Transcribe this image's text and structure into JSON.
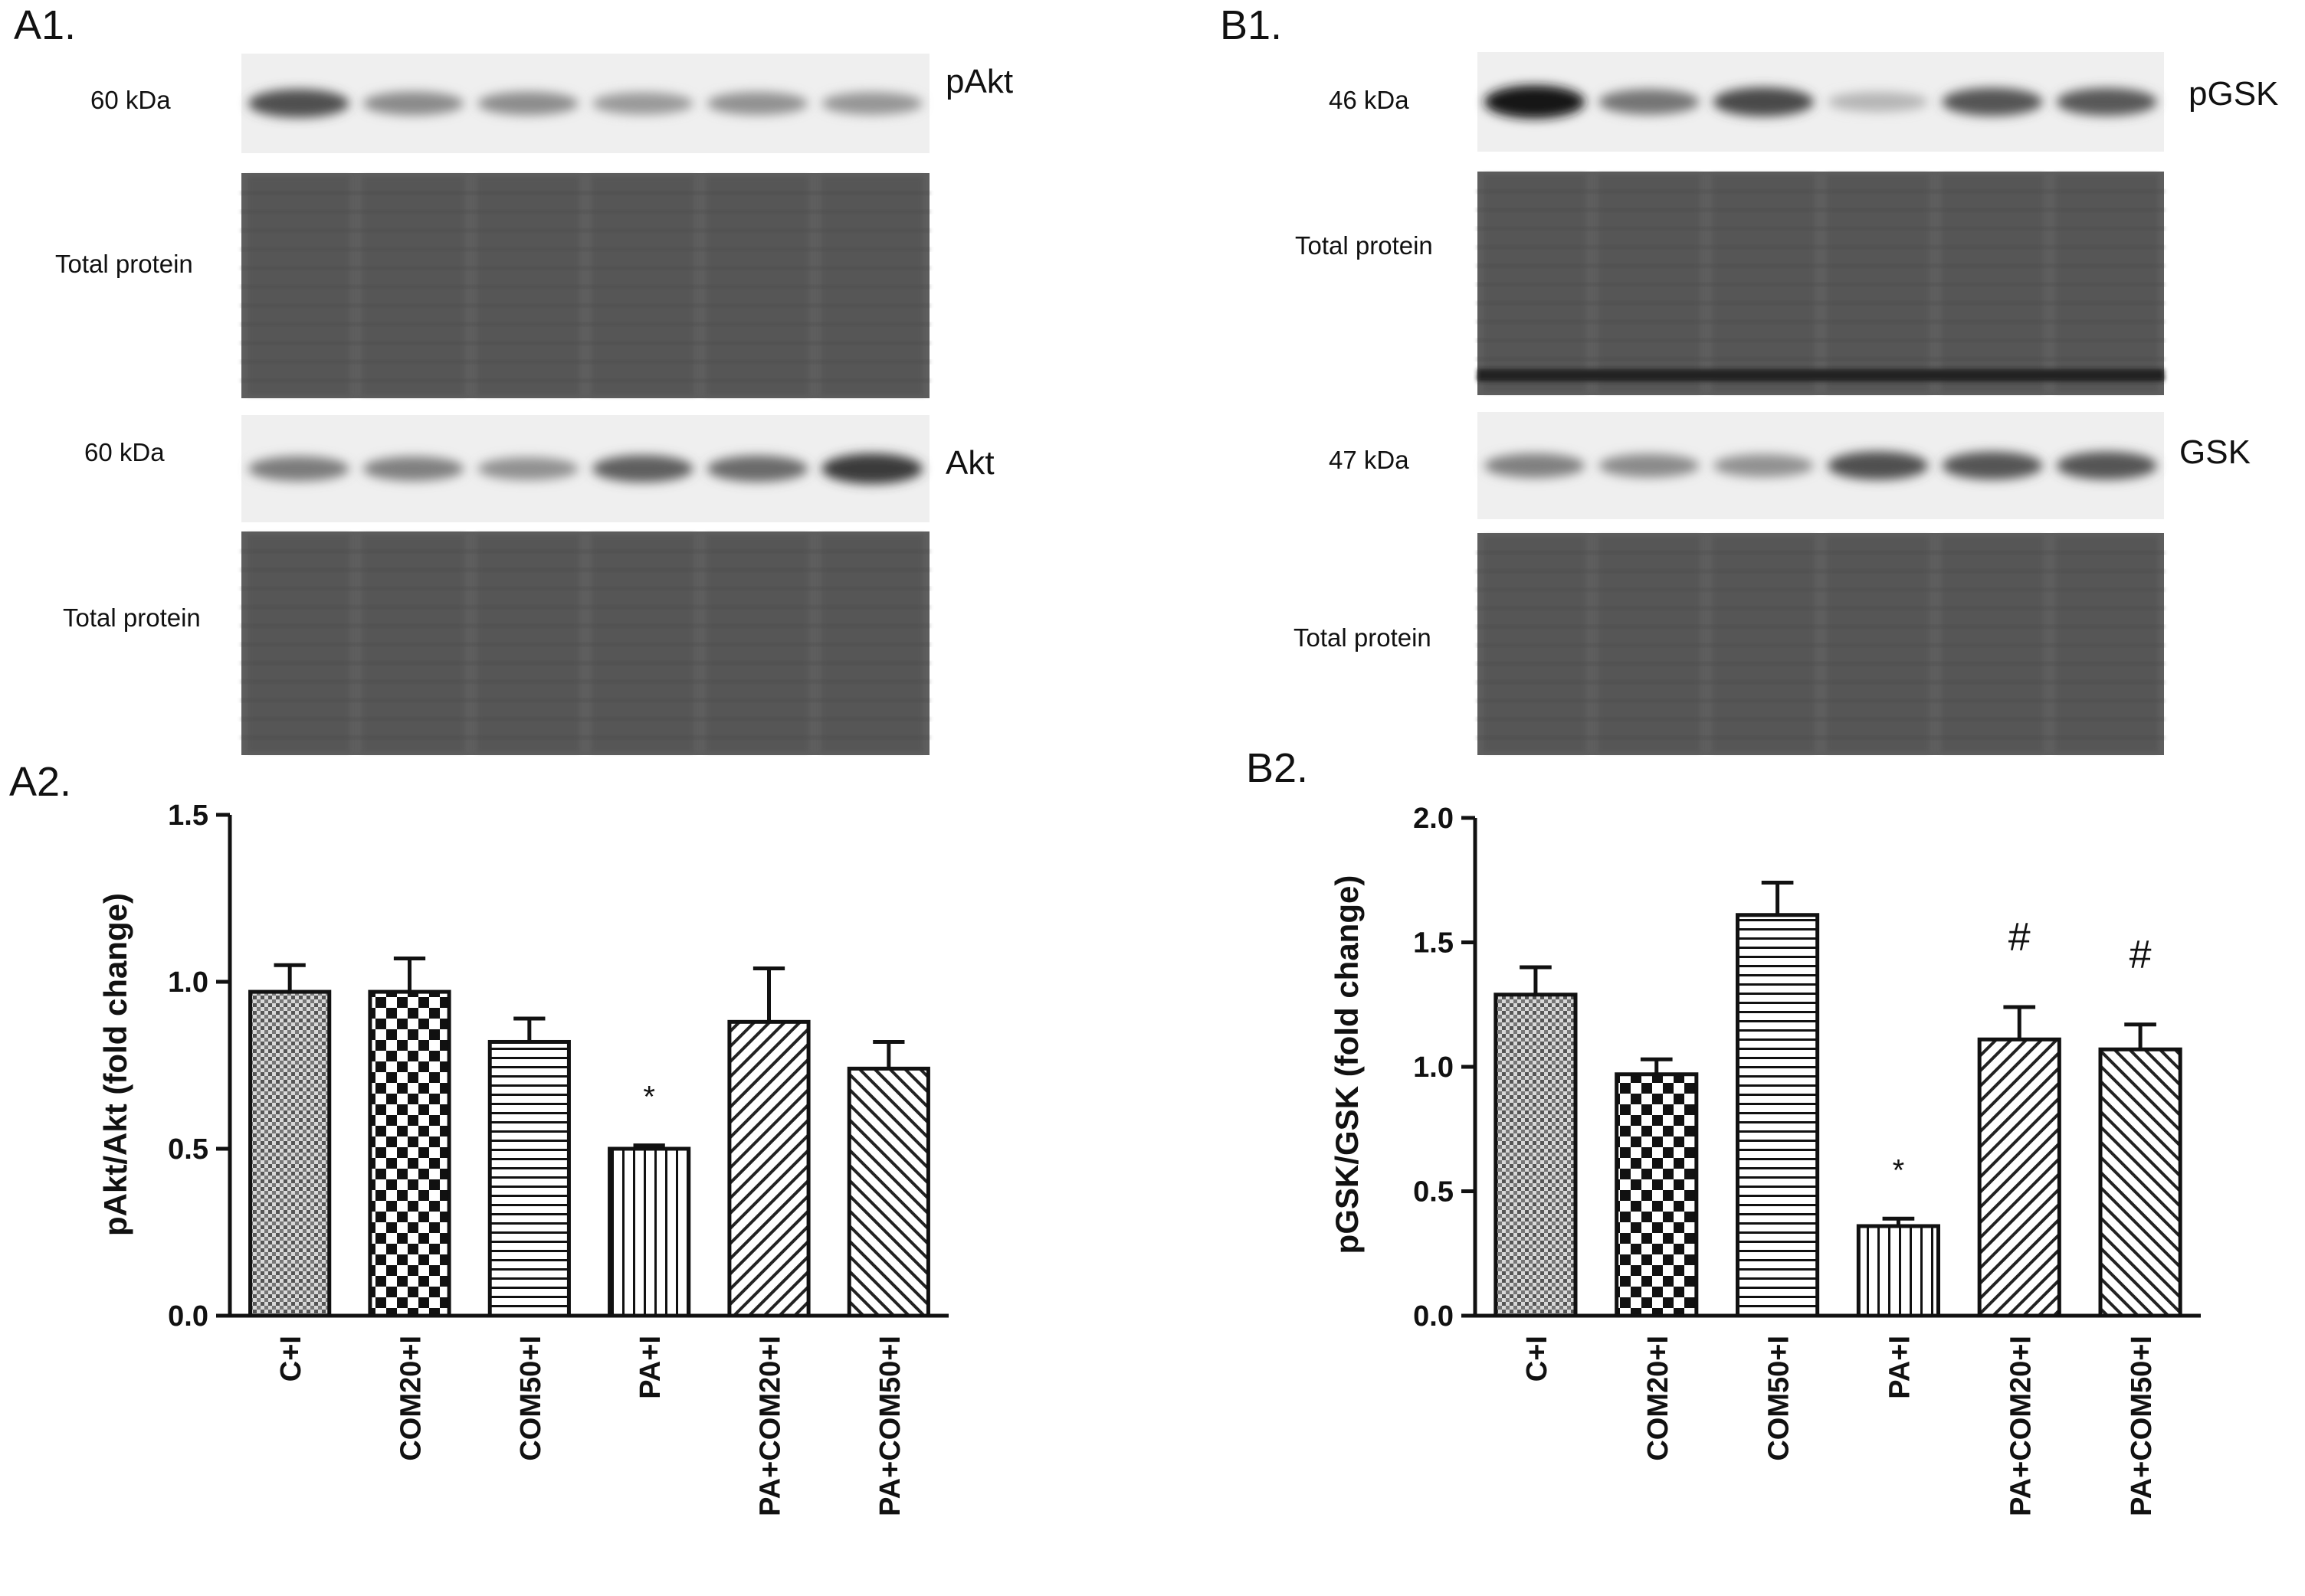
{
  "panels": {
    "a1": {
      "letter": "A1.",
      "rows": [
        {
          "kda": "60 kDa",
          "name": "pAkt",
          "type": "band",
          "intensity": [
            0.72,
            0.45,
            0.44,
            0.38,
            0.42,
            0.4
          ]
        },
        {
          "left": "Total protein",
          "type": "total"
        },
        {
          "kda": "60 kDa",
          "name": "Akt",
          "type": "band",
          "intensity": [
            0.52,
            0.5,
            0.42,
            0.65,
            0.6,
            0.82
          ]
        },
        {
          "left": "Total protein",
          "type": "total"
        }
      ]
    },
    "b1": {
      "letter": "B1.",
      "rows": [
        {
          "kda": "46 kDa",
          "name": "pGSK",
          "type": "band",
          "intensity": [
            0.98,
            0.55,
            0.75,
            0.25,
            0.7,
            0.68
          ]
        },
        {
          "left": "Total protein",
          "type": "total"
        },
        {
          "kda": "47 kDa",
          "name": "GSK",
          "type": "band",
          "intensity": [
            0.5,
            0.45,
            0.42,
            0.72,
            0.7,
            0.7
          ]
        },
        {
          "left": "Total protein",
          "type": "total"
        }
      ]
    },
    "a2": {
      "letter": "A2."
    },
    "b2": {
      "letter": "B2."
    }
  },
  "chart_data": [
    {
      "type": "bar",
      "categories": [
        "C+I",
        "COM20+I",
        "COM50+I",
        "PA+I",
        "PA+COM20+I",
        "PA+COM50+I"
      ],
      "values": [
        0.97,
        0.97,
        0.82,
        0.5,
        0.88,
        0.74
      ],
      "errors": [
        0.08,
        0.1,
        0.07,
        0.01,
        0.16,
        0.08
      ],
      "annotations": [
        "",
        "",
        "",
        "*",
        "",
        ""
      ],
      "patterns": [
        "dots",
        "checker",
        "hlines",
        "vlines",
        "diag-right",
        "diag-left"
      ],
      "ylabel": "pAkt/Akt (fold change)",
      "ylim": [
        0,
        1.5
      ],
      "yticks": [
        "0.0",
        "0.5",
        "1.0",
        "1.5"
      ],
      "ytick_values": [
        0,
        0.5,
        1.0,
        1.5
      ]
    },
    {
      "type": "bar",
      "categories": [
        "C+I",
        "COM20+I",
        "COM50+I",
        "PA+I",
        "PA+COM20+I",
        "PA+COM50+I"
      ],
      "values": [
        1.29,
        0.97,
        1.61,
        0.36,
        1.11,
        1.07
      ],
      "errors": [
        0.11,
        0.06,
        0.13,
        0.03,
        0.13,
        0.1
      ],
      "annotations": [
        "",
        "",
        "",
        "*",
        "#",
        "#"
      ],
      "patterns": [
        "dots",
        "checker",
        "hlines",
        "vlines",
        "diag-right",
        "diag-left"
      ],
      "ylabel": "pGSK/GSK (fold change)",
      "ylim": [
        0,
        2.0
      ],
      "yticks": [
        "0.0",
        "0.5",
        "1.0",
        "1.5",
        "2.0"
      ],
      "ytick_values": [
        0,
        0.5,
        1.0,
        1.5,
        2.0
      ]
    }
  ]
}
